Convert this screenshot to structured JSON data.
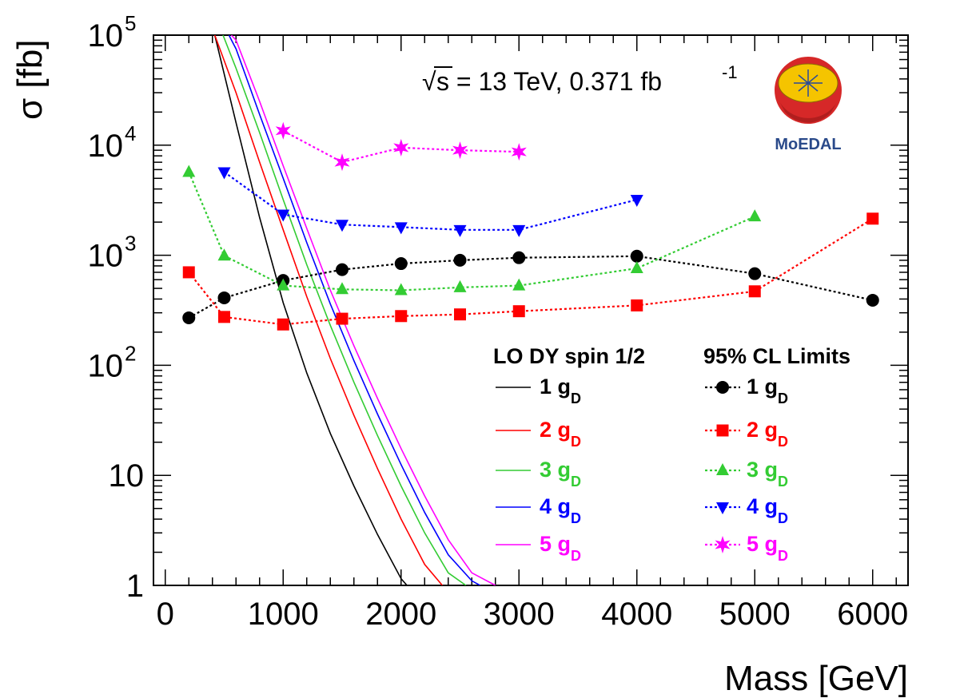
{
  "chart_data": {
    "type": "line",
    "title": "",
    "xlabel": "Mass [GeV]",
    "ylabel": "σ [fb]",
    "xlim": [
      -100,
      6300
    ],
    "ylim": [
      1,
      100000
    ],
    "yscale": "log",
    "x_ticks": [
      0,
      1000,
      2000,
      3000,
      4000,
      5000,
      6000
    ],
    "x_tick_labels": [
      "0",
      "1000",
      "2000",
      "3000",
      "4000",
      "5000",
      "6000"
    ],
    "y_ticks": [
      1,
      10,
      100,
      1000,
      10000,
      100000
    ],
    "y_tick_labels": [
      {
        "base": "1",
        "exp": ""
      },
      {
        "base": "10",
        "exp": ""
      },
      {
        "base": "10",
        "exp": "2"
      },
      {
        "base": "10",
        "exp": "3"
      },
      {
        "base": "10",
        "exp": "4"
      },
      {
        "base": "10",
        "exp": "5"
      }
    ],
    "annotation": {
      "sqrt": "√",
      "s_text": "s = 13 TeV, 0.371 fb",
      "exp": "-1"
    },
    "logo": {
      "text": "MoEDAL"
    },
    "legend": {
      "theory_title": "LO DY spin 1/2",
      "limits_title": "95% CL Limits",
      "g_label": "g",
      "g_sub": "D"
    },
    "theory_series": [
      {
        "name": "1",
        "color": "#000000",
        "x": [
          420,
          600,
          800,
          1000,
          1200,
          1400,
          1600,
          1800,
          2000,
          2050
        ],
        "y": [
          100000,
          16000,
          2200,
          370,
          85,
          24,
          8.0,
          2.9,
          1.15,
          1.0
        ]
      },
      {
        "name": "2",
        "color": "#ff0000",
        "x": [
          420,
          600,
          800,
          1000,
          1200,
          1400,
          1600,
          1800,
          2000,
          2200,
          2350
        ],
        "y": [
          100000,
          30000,
          7000,
          1700,
          420,
          115,
          35,
          11.5,
          4.0,
          1.55,
          1.0
        ]
      },
      {
        "name": "3",
        "color": "#33cc33",
        "x": [
          490,
          600,
          800,
          1000,
          1200,
          1400,
          1600,
          1800,
          2000,
          2200,
          2400,
          2550
        ],
        "y": [
          100000,
          50000,
          13000,
          3200,
          820,
          230,
          70,
          23,
          8.0,
          3.0,
          1.3,
          1.0
        ]
      },
      {
        "name": "4",
        "color": "#0000ff",
        "x": [
          540,
          600,
          800,
          1000,
          1200,
          1400,
          1600,
          1800,
          2000,
          2200,
          2400,
          2600,
          2670
        ],
        "y": [
          100000,
          75000,
          19000,
          5000,
          1300,
          360,
          110,
          36,
          12.5,
          4.6,
          1.9,
          1.1,
          1.0
        ]
      },
      {
        "name": "5",
        "color": "#ff00ff",
        "x": [
          560,
          600,
          800,
          1000,
          1200,
          1400,
          1600,
          1800,
          2000,
          2200,
          2400,
          2600,
          2800
        ],
        "y": [
          100000,
          90000,
          25000,
          6500,
          1750,
          480,
          150,
          50,
          17.5,
          6.5,
          2.6,
          1.3,
          1.0
        ]
      }
    ],
    "limit_series": [
      {
        "name": "1",
        "color": "#000000",
        "marker": "circle",
        "x": [
          200,
          500,
          1000,
          1500,
          2000,
          2500,
          3000,
          4000,
          5000,
          6000
        ],
        "y": [
          270,
          410,
          590,
          740,
          840,
          900,
          950,
          980,
          680,
          390
        ]
      },
      {
        "name": "2",
        "color": "#ff0000",
        "marker": "square",
        "x": [
          200,
          500,
          1000,
          1500,
          2000,
          2500,
          3000,
          4000,
          5000,
          6000
        ],
        "y": [
          700,
          275,
          235,
          265,
          280,
          290,
          310,
          350,
          470,
          2150
        ]
      },
      {
        "name": "3",
        "color": "#33cc33",
        "marker": "triangle-up",
        "x": [
          200,
          500,
          1000,
          1500,
          2000,
          2500,
          3000,
          4000,
          5000
        ],
        "y": [
          5700,
          990,
          530,
          490,
          480,
          510,
          530,
          760,
          2250
        ]
      },
      {
        "name": "4",
        "color": "#0000ff",
        "marker": "triangle-down",
        "x": [
          500,
          1000,
          1500,
          2000,
          2500,
          3000,
          4000
        ],
        "y": [
          5700,
          2350,
          1900,
          1800,
          1700,
          1700,
          3200
        ]
      },
      {
        "name": "5",
        "color": "#ff00ff",
        "marker": "star",
        "x": [
          1000,
          1500,
          2000,
          2500,
          3000
        ],
        "y": [
          13500,
          7000,
          9500,
          9000,
          8700
        ]
      }
    ]
  }
}
